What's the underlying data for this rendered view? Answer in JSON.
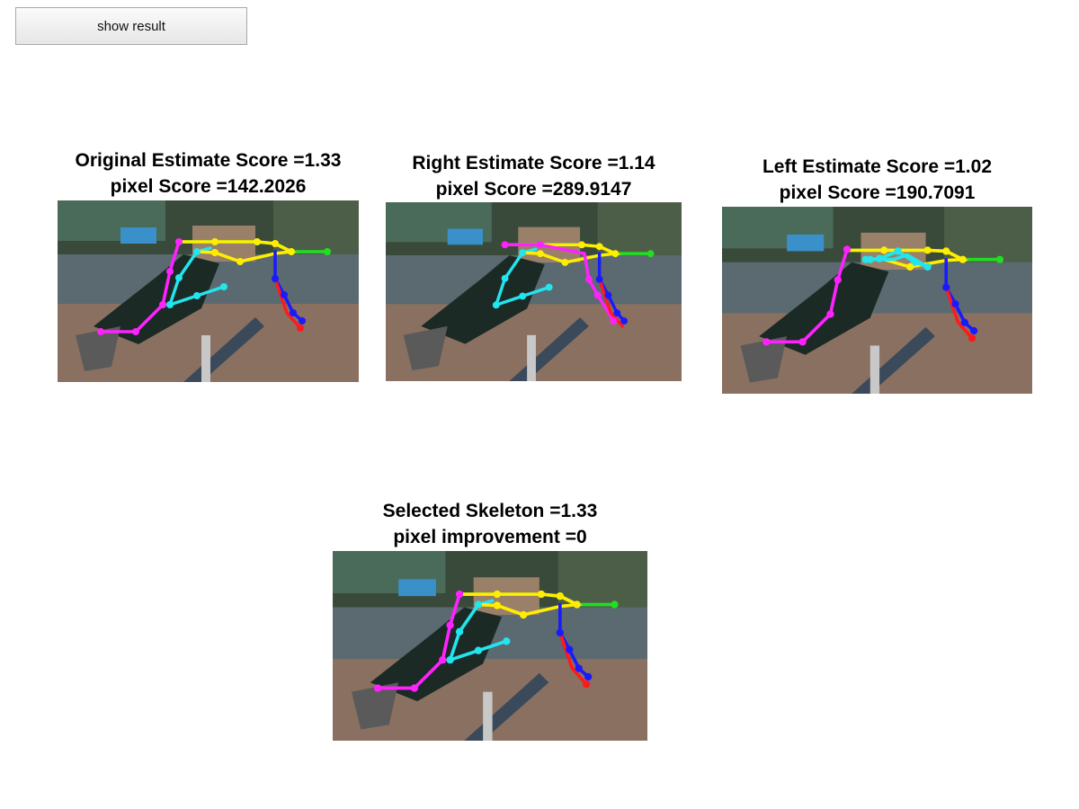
{
  "toolbar": {
    "show_result_label": "show result"
  },
  "panels": {
    "original": {
      "line1": "Original Estimate Score =1.33",
      "line2": "pixel Score =142.2026"
    },
    "right": {
      "line1": "Right Estimate Score =1.14",
      "line2": "pixel Score =289.9147"
    },
    "left": {
      "line1": "Left Estimate Score =1.02",
      "line2": "pixel Score =190.7091"
    },
    "selected": {
      "line1": "Selected Skeleton =1.33",
      "line2": "pixel improvement =0"
    }
  },
  "limb_colors": {
    "head": "#22dd22",
    "torso": "#ffee00",
    "arm_a": "#ff22ff",
    "arm_b": "#22e5ee",
    "leg_a": "#1a1aff",
    "leg_b": "#ff1a1a"
  }
}
